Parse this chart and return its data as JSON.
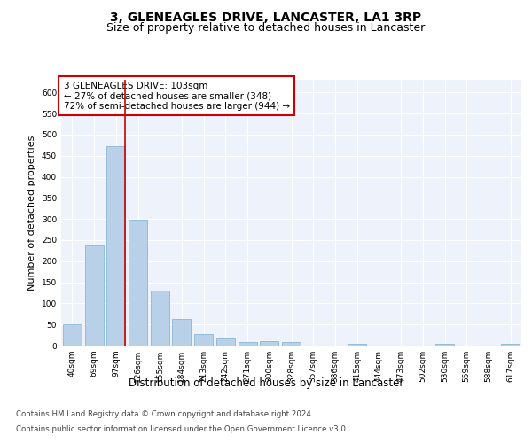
{
  "title1": "3, GLENEAGLES DRIVE, LANCASTER, LA1 3RP",
  "title2": "Size of property relative to detached houses in Lancaster",
  "xlabel": "Distribution of detached houses by size in Lancaster",
  "ylabel": "Number of detached properties",
  "categories": [
    "40sqm",
    "69sqm",
    "97sqm",
    "126sqm",
    "155sqm",
    "184sqm",
    "213sqm",
    "242sqm",
    "271sqm",
    "300sqm",
    "328sqm",
    "357sqm",
    "386sqm",
    "415sqm",
    "444sqm",
    "473sqm",
    "502sqm",
    "530sqm",
    "559sqm",
    "588sqm",
    "617sqm"
  ],
  "values": [
    50,
    237,
    472,
    298,
    130,
    62,
    28,
    16,
    9,
    10,
    8,
    0,
    0,
    5,
    0,
    0,
    0,
    5,
    0,
    0,
    5
  ],
  "bar_color": "#b8d0e8",
  "bar_edge_color": "#7aafd4",
  "vline_color": "#cc0000",
  "vline_bar_index": 2,
  "annotation_line1": "3 GLENEAGLES DRIVE: 103sqm",
  "annotation_line2": "← 27% of detached houses are smaller (348)",
  "annotation_line3": "72% of semi-detached houses are larger (944) →",
  "annotation_box_facecolor": "white",
  "annotation_box_edgecolor": "#cc0000",
  "ylim": [
    0,
    630
  ],
  "yticks": [
    0,
    50,
    100,
    150,
    200,
    250,
    300,
    350,
    400,
    450,
    500,
    550,
    600
  ],
  "background_color": "#eef2fa",
  "grid_color": "white",
  "footer_line1": "Contains HM Land Registry data © Crown copyright and database right 2024.",
  "footer_line2": "Contains public sector information licensed under the Open Government Licence v3.0.",
  "title1_fontsize": 10,
  "title2_fontsize": 9,
  "ylabel_fontsize": 8,
  "xlabel_fontsize": 8.5,
  "tick_fontsize": 6.5,
  "annotation_fontsize": 7.5,
  "footer_fontsize": 6.2
}
